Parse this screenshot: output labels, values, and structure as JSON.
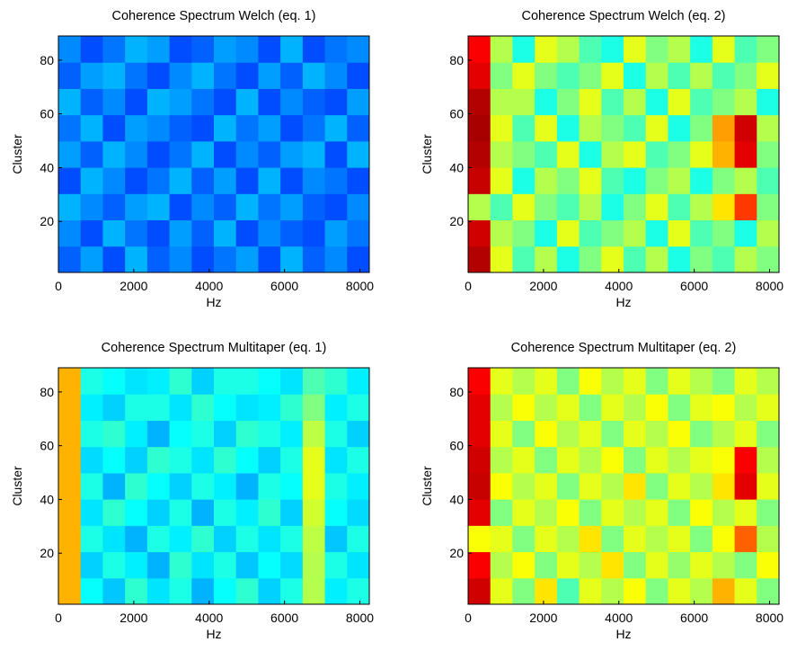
{
  "chart_data": [
    {
      "type": "heatmap",
      "title": "Coherence Spectrum Welch (eq. 1)",
      "xlabel": "Hz",
      "ylabel": "Cluster",
      "xlim": [
        0,
        8250
      ],
      "ylim": [
        1,
        89
      ],
      "xticks": [
        0,
        2000,
        4000,
        6000,
        8000
      ],
      "yticks": [
        20,
        40,
        60,
        80
      ],
      "colormap": "jet",
      "clim": [
        0,
        1
      ],
      "values": [
        [
          0.22,
          0.28,
          0.2,
          0.3,
          0.22,
          0.26,
          0.2,
          0.24,
          0.28,
          0.2,
          0.3,
          0.22,
          0.26,
          0.2
        ],
        [
          0.26,
          0.2,
          0.3,
          0.24,
          0.2,
          0.28,
          0.22,
          0.3,
          0.2,
          0.26,
          0.22,
          0.2,
          0.28,
          0.24
        ],
        [
          0.3,
          0.26,
          0.22,
          0.28,
          0.3,
          0.2,
          0.26,
          0.22,
          0.3,
          0.24,
          0.28,
          0.22,
          0.2,
          0.26
        ],
        [
          0.2,
          0.3,
          0.26,
          0.2,
          0.24,
          0.3,
          0.22,
          0.28,
          0.2,
          0.3,
          0.2,
          0.26,
          0.24,
          0.2
        ],
        [
          0.28,
          0.22,
          0.3,
          0.26,
          0.2,
          0.24,
          0.3,
          0.2,
          0.26,
          0.22,
          0.28,
          0.3,
          0.2,
          0.3
        ],
        [
          0.24,
          0.3,
          0.2,
          0.28,
          0.26,
          0.22,
          0.2,
          0.3,
          0.24,
          0.28,
          0.2,
          0.24,
          0.3,
          0.22
        ],
        [
          0.3,
          0.22,
          0.26,
          0.2,
          0.3,
          0.28,
          0.24,
          0.2,
          0.3,
          0.2,
          0.26,
          0.22,
          0.2,
          0.28
        ],
        [
          0.22,
          0.28,
          0.3,
          0.24,
          0.2,
          0.26,
          0.3,
          0.24,
          0.2,
          0.28,
          0.22,
          0.3,
          0.26,
          0.2
        ],
        [
          0.26,
          0.2,
          0.24,
          0.3,
          0.28,
          0.2,
          0.22,
          0.28,
          0.26,
          0.2,
          0.3,
          0.2,
          0.24,
          0.26
        ]
      ]
    },
    {
      "type": "heatmap",
      "title": "Coherence Spectrum Welch (eq. 2)",
      "xlabel": "Hz",
      "ylabel": "Cluster",
      "xlim": [
        0,
        8250
      ],
      "ylim": [
        1,
        89
      ],
      "xticks": [
        0,
        2000,
        4000,
        6000,
        8000
      ],
      "yticks": [
        20,
        40,
        60,
        80
      ],
      "colormap": "jet",
      "clim": [
        0,
        1
      ],
      "values": [
        [
          0.95,
          0.6,
          0.45,
          0.55,
          0.4,
          0.5,
          0.6,
          0.45,
          0.55,
          0.4,
          0.5,
          0.45,
          0.55,
          0.5
        ],
        [
          0.92,
          0.55,
          0.5,
          0.4,
          0.6,
          0.45,
          0.5,
          0.55,
          0.4,
          0.6,
          0.45,
          0.5,
          0.4,
          0.55
        ],
        [
          0.55,
          0.45,
          0.6,
          0.5,
          0.45,
          0.55,
          0.4,
          0.5,
          0.6,
          0.45,
          0.55,
          0.65,
          0.82,
          0.5
        ],
        [
          0.93,
          0.6,
          0.4,
          0.55,
          0.5,
          0.6,
          0.45,
          0.4,
          0.5,
          0.55,
          0.4,
          0.5,
          0.55,
          0.45
        ],
        [
          0.95,
          0.55,
          0.5,
          0.45,
          0.6,
          0.4,
          0.55,
          0.6,
          0.45,
          0.5,
          0.6,
          0.7,
          0.9,
          0.5
        ],
        [
          0.96,
          0.6,
          0.45,
          0.6,
          0.4,
          0.55,
          0.5,
          0.45,
          0.6,
          0.4,
          0.5,
          0.72,
          0.92,
          0.55
        ],
        [
          0.95,
          0.55,
          0.55,
          0.4,
          0.5,
          0.6,
          0.45,
          0.55,
          0.4,
          0.6,
          0.45,
          0.5,
          0.55,
          0.4
        ],
        [
          0.9,
          0.5,
          0.6,
          0.5,
          0.45,
          0.5,
          0.6,
          0.4,
          0.55,
          0.45,
          0.55,
          0.45,
          0.5,
          0.6
        ],
        [
          0.88,
          0.55,
          0.4,
          0.6,
          0.55,
          0.45,
          0.4,
          0.6,
          0.5,
          0.55,
          0.4,
          0.6,
          0.45,
          0.5
        ]
      ]
    },
    {
      "type": "heatmap",
      "title": "Coherence Spectrum Multitaper (eq. 1)",
      "xlabel": "Hz",
      "ylabel": "Cluster",
      "xlim": [
        0,
        8250
      ],
      "ylim": [
        1,
        89
      ],
      "xticks": [
        0,
        2000,
        4000,
        6000,
        8000
      ],
      "yticks": [
        20,
        40,
        60,
        80
      ],
      "colormap": "jet",
      "clim": [
        0,
        1
      ],
      "values": [
        [
          0.7,
          0.38,
          0.32,
          0.42,
          0.35,
          0.4,
          0.3,
          0.38,
          0.42,
          0.33,
          0.4,
          0.55,
          0.36,
          0.4
        ],
        [
          0.7,
          0.33,
          0.4,
          0.36,
          0.3,
          0.42,
          0.35,
          0.4,
          0.32,
          0.38,
          0.34,
          0.55,
          0.4,
          0.35
        ],
        [
          0.7,
          0.4,
          0.35,
          0.3,
          0.4,
          0.36,
          0.42,
          0.33,
          0.4,
          0.35,
          0.4,
          0.56,
          0.32,
          0.4
        ],
        [
          0.7,
          0.35,
          0.42,
          0.38,
          0.33,
          0.4,
          0.3,
          0.4,
          0.36,
          0.42,
          0.33,
          0.58,
          0.38,
          0.34
        ],
        [
          0.7,
          0.4,
          0.3,
          0.42,
          0.38,
          0.33,
          0.4,
          0.36,
          0.3,
          0.4,
          0.38,
          0.6,
          0.4,
          0.36
        ],
        [
          0.7,
          0.34,
          0.38,
          0.33,
          0.42,
          0.4,
          0.35,
          0.42,
          0.38,
          0.33,
          0.4,
          0.6,
          0.35,
          0.4
        ],
        [
          0.7,
          0.4,
          0.42,
          0.36,
          0.3,
          0.38,
          0.4,
          0.33,
          0.42,
          0.4,
          0.36,
          0.56,
          0.4,
          0.33
        ],
        [
          0.7,
          0.36,
          0.33,
          0.4,
          0.4,
          0.35,
          0.42,
          0.38,
          0.35,
          0.36,
          0.42,
          0.5,
          0.36,
          0.4
        ],
        [
          0.7,
          0.4,
          0.38,
          0.35,
          0.36,
          0.42,
          0.33,
          0.4,
          0.4,
          0.38,
          0.35,
          0.45,
          0.42,
          0.36
        ]
      ]
    },
    {
      "type": "heatmap",
      "title": "Coherence Spectrum Multitaper (eq. 2)",
      "xlabel": "Hz",
      "ylabel": "Cluster",
      "xlim": [
        0,
        8250
      ],
      "ylim": [
        1,
        89
      ],
      "xticks": [
        0,
        2000,
        4000,
        6000,
        8000
      ],
      "yticks": [
        20,
        40,
        60,
        80
      ],
      "colormap": "jet",
      "clim": [
        0,
        1
      ],
      "values": [
        [
          0.92,
          0.6,
          0.5,
          0.65,
          0.45,
          0.6,
          0.55,
          0.62,
          0.5,
          0.6,
          0.55,
          0.7,
          0.6,
          0.5
        ],
        [
          0.88,
          0.55,
          0.62,
          0.5,
          0.6,
          0.55,
          0.65,
          0.5,
          0.6,
          0.52,
          0.6,
          0.55,
          0.5,
          0.62
        ],
        [
          0.62,
          0.6,
          0.5,
          0.6,
          0.55,
          0.65,
          0.5,
          0.6,
          0.55,
          0.6,
          0.5,
          0.62,
          0.78,
          0.55
        ],
        [
          0.9,
          0.5,
          0.6,
          0.55,
          0.62,
          0.5,
          0.6,
          0.55,
          0.6,
          0.5,
          0.62,
          0.55,
          0.6,
          0.5
        ],
        [
          0.93,
          0.62,
          0.55,
          0.6,
          0.5,
          0.6,
          0.55,
          0.65,
          0.5,
          0.6,
          0.55,
          0.65,
          0.9,
          0.6
        ],
        [
          0.92,
          0.55,
          0.6,
          0.5,
          0.6,
          0.55,
          0.62,
          0.5,
          0.6,
          0.55,
          0.6,
          0.62,
          0.88,
          0.55
        ],
        [
          0.9,
          0.6,
          0.5,
          0.62,
          0.55,
          0.6,
          0.5,
          0.6,
          0.55,
          0.62,
          0.5,
          0.55,
          0.6,
          0.5
        ],
        [
          0.9,
          0.55,
          0.62,
          0.55,
          0.6,
          0.5,
          0.6,
          0.55,
          0.62,
          0.5,
          0.6,
          0.62,
          0.55,
          0.6
        ],
        [
          0.88,
          0.6,
          0.55,
          0.6,
          0.5,
          0.62,
          0.55,
          0.6,
          0.5,
          0.6,
          0.55,
          0.5,
          0.6,
          0.55
        ]
      ]
    }
  ]
}
